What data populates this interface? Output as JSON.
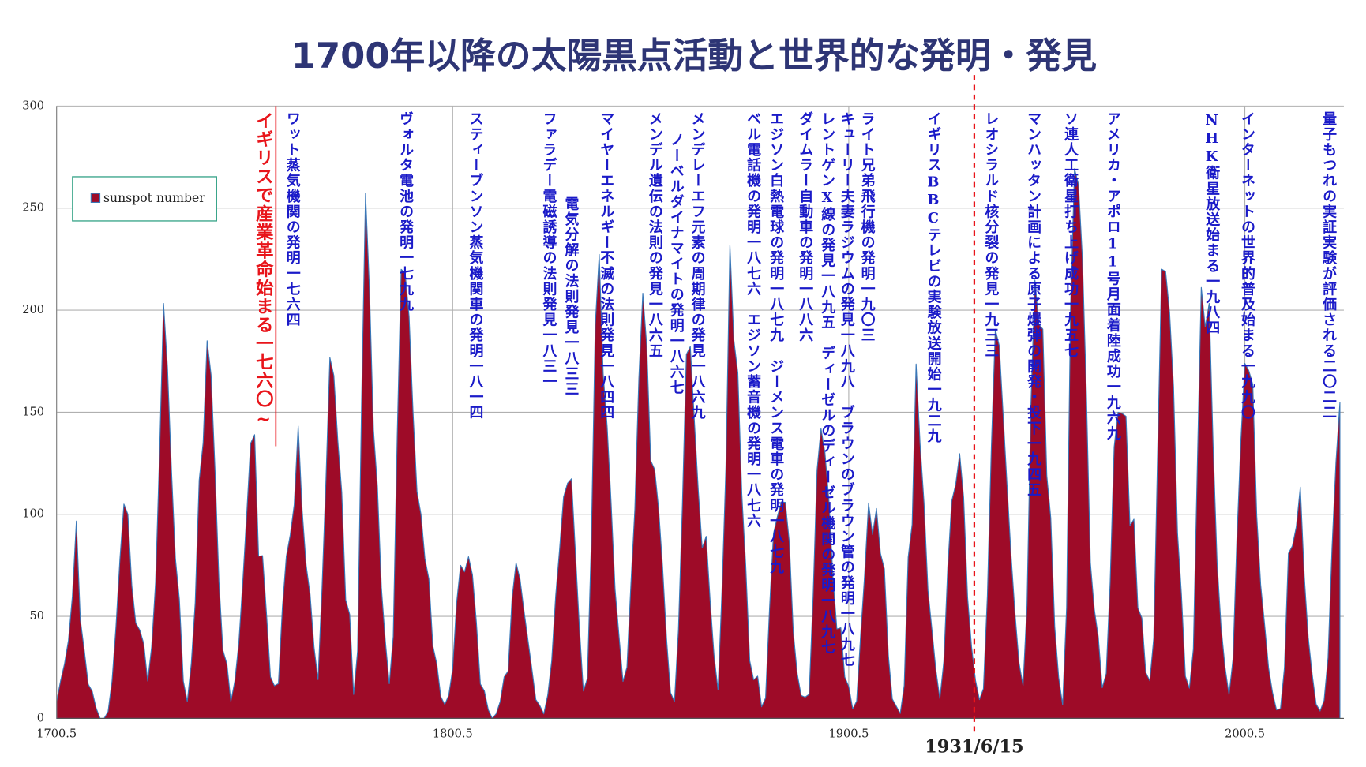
{
  "chart_data": {
    "type": "area",
    "title": "1700年以降の太陽黒点活動と世界的な発明・発見",
    "series": [
      {
        "name": "sunspot number",
        "color": "#9e0b28",
        "line_color": "#3a78b8",
        "values": [
          8.3,
          18.3,
          26.7,
          38.3,
          60.0,
          96.7,
          48.3,
          33.3,
          16.7,
          13.3,
          5.0,
          0.0,
          0.0,
          3.3,
          18.3,
          45.0,
          78.3,
          105.0,
          100.0,
          65.0,
          46.7,
          43.3,
          36.7,
          18.3,
          35.0,
          66.7,
          130.0,
          203.3,
          171.7,
          121.7,
          78.3,
          58.3,
          18.3,
          8.3,
          26.7,
          56.7,
          116.7,
          135.0,
          185.0,
          168.3,
          121.7,
          66.7,
          33.3,
          26.7,
          8.3,
          18.3,
          36.7,
          66.7,
          100.0,
          134.8,
          139.0,
          79.5,
          79.7,
          51.2,
          20.3,
          16.0,
          17.0,
          54.0,
          79.3,
          90.0,
          104.8,
          143.2,
          102.0,
          75.2,
          60.7,
          34.8,
          19.0,
          63.0,
          116.3,
          176.8,
          168.0,
          136.0,
          110.8,
          58.0,
          51.0,
          11.7,
          33.0,
          154.2,
          257.3,
          209.8,
          141.3,
          113.5,
          64.2,
          38.0,
          17.0,
          40.2,
          138.2,
          220.0,
          218.2,
          196.8,
          149.8,
          111.0,
          100.0,
          78.2,
          68.3,
          35.5,
          26.7,
          10.7,
          6.8,
          11.3,
          24.2,
          56.7,
          75.0,
          71.8,
          79.2,
          70.3,
          46.8,
          16.8,
          13.5,
          4.2,
          0.0,
          2.3,
          8.3,
          20.3,
          23.2,
          59.0,
          76.3,
          68.3,
          52.9,
          38.5,
          24.2,
          9.2,
          6.3,
          2.2,
          11.4,
          28.2,
          59.9,
          83.0,
          108.5,
          115.2,
          117.4,
          80.8,
          44.3,
          13.4,
          19.5,
          85.8,
          192.7,
          227.3,
          168.7,
          143.0,
          105.5,
          63.3,
          40.3,
          18.1,
          25.1,
          65.8,
          102.7,
          166.3,
          208.3,
          182.5,
          126.3,
          122.0,
          102.7,
          74.1,
          39.0,
          12.7,
          8.2,
          43.4,
          104.4,
          178.3,
          182.2,
          146.6,
          112.1,
          83.5,
          89.2,
          57.8,
          30.7,
          13.9,
          62.8,
          123.6,
          232.0,
          185.3,
          169.2,
          110.1,
          74.5,
          28.3,
          18.9,
          20.7,
          5.7,
          10.0,
          53.7,
          90.5,
          99.0,
          106.1,
          105.8,
          86.3,
          42.4,
          21.8,
          11.2,
          10.4,
          11.8,
          59.5,
          121.7,
          142.0,
          130.0,
          106.6,
          69.4,
          43.8,
          44.4,
          20.2,
          15.7,
          4.6,
          8.5,
          40.8,
          70.1,
          105.5,
          90.1,
          102.8,
          80.9,
          73.2,
          30.9,
          9.5,
          6.0,
          2.4,
          16.1,
          79.0,
          95.0,
          173.6,
          134.6,
          105.7,
          62.7,
          43.5,
          23.7,
          9.7,
          27.9,
          74.0,
          106.5,
          114.7,
          129.7,
          108.2,
          59.4,
          35.1,
          18.6,
          9.2,
          14.6,
          60.2,
          132.8,
          190.6,
          182.6,
          148.0,
          113.0,
          79.2,
          50.8,
          27.1,
          16.1,
          55.3,
          154.3,
          214.7,
          193.0,
          190.7,
          118.9,
          98.3,
          45.0,
          20.1,
          6.6,
          54.2,
          200.7,
          269.3,
          261.7,
          225.1,
          159.0,
          76.4,
          53.4,
          39.9,
          15.0,
          22.0,
          66.8,
          132.9,
          150.0,
          149.4,
          148.0,
          94.4,
          97.6,
          54.1,
          49.2,
          22.5,
          18.4,
          39.3,
          131.0,
          220.1,
          218.9,
          198.9,
          162.4,
          91.0,
          60.5,
          20.6,
          14.8,
          33.9,
          123.0,
          211.1,
          191.8,
          203.3,
          133.0,
          76.1,
          44.9,
          25.1,
          11.6,
          28.9,
          88.3,
          136.3,
          173.9,
          170.4,
          163.6,
          99.3,
          65.3,
          45.8,
          24.7,
          12.6,
          4.2,
          4.8,
          24.9,
          80.8,
          84.5,
          94.0,
          113.3,
          69.8,
          39.8,
          21.7,
          7.0,
          3.6,
          8.8,
          29.6,
          83.2,
          125.5,
          154.7
        ]
      }
    ],
    "x": [
      1700.5,
      1701.5,
      1702.5,
      1703.5,
      1704.5,
      1705.5,
      1706.5,
      1707.5,
      1708.5,
      1709.5,
      1710.5,
      1711.5,
      1712.5,
      1713.5,
      1714.5,
      1715.5,
      1716.5,
      1717.5,
      1718.5,
      1719.5,
      1720.5,
      1721.5,
      1722.5,
      1723.5,
      1724.5,
      1725.5,
      1726.5,
      1727.5,
      1728.5,
      1729.5,
      1730.5,
      1731.5,
      1732.5,
      1733.5,
      1734.5,
      1735.5,
      1736.5,
      1737.5,
      1738.5,
      1739.5,
      1740.5,
      1741.5,
      1742.5,
      1743.5,
      1744.5,
      1745.5,
      1746.5,
      1747.5,
      1748.5,
      1749.5,
      1750.5,
      1751.5,
      1752.5,
      1753.5,
      1754.5,
      1755.5,
      1756.5,
      1757.5,
      1758.5,
      1759.5,
      1760.5,
      1761.5,
      1762.5,
      1763.5,
      1764.5,
      1765.5,
      1766.5,
      1767.5,
      1768.5,
      1769.5,
      1770.5,
      1771.5,
      1772.5,
      1773.5,
      1774.5,
      1775.5,
      1776.5,
      1777.5,
      1778.5,
      1779.5,
      1780.5,
      1781.5,
      1782.5,
      1783.5,
      1784.5,
      1785.5,
      1786.5,
      1787.5,
      1788.5,
      1789.5,
      1790.5,
      1791.5,
      1792.5,
      1793.5,
      1794.5,
      1795.5,
      1796.5,
      1797.5,
      1798.5,
      1799.5,
      1800.5,
      1801.5,
      1802.5,
      1803.5,
      1804.5,
      1805.5,
      1806.5,
      1807.5,
      1808.5,
      1809.5,
      1810.5,
      1811.5,
      1812.5,
      1813.5,
      1814.5,
      1815.5,
      1816.5,
      1817.5,
      1818.5,
      1819.5,
      1820.5,
      1821.5,
      1822.5,
      1823.5,
      1824.5,
      1825.5,
      1826.5,
      1827.5,
      1828.5,
      1829.5,
      1830.5,
      1831.5,
      1832.5,
      1833.5,
      1834.5,
      1835.5,
      1836.5,
      1837.5,
      1838.5,
      1839.5,
      1840.5,
      1841.5,
      1842.5,
      1843.5,
      1844.5,
      1845.5,
      1846.5,
      1847.5,
      1848.5,
      1849.5,
      1850.5,
      1851.5,
      1852.5,
      1853.5,
      1854.5,
      1855.5,
      1856.5,
      1857.5,
      1858.5,
      1859.5,
      1860.5,
      1861.5,
      1862.5,
      1863.5,
      1864.5,
      1865.5,
      1866.5,
      1867.5,
      1868.5,
      1869.5,
      1870.5,
      1871.5,
      1872.5,
      1873.5,
      1874.5,
      1875.5,
      1876.5,
      1877.5,
      1878.5,
      1879.5,
      1880.5,
      1881.5,
      1882.5,
      1883.5,
      1884.5,
      1885.5,
      1886.5,
      1887.5,
      1888.5,
      1889.5,
      1890.5,
      1891.5,
      1892.5,
      1893.5,
      1894.5,
      1895.5,
      1896.5,
      1897.5,
      1898.5,
      1899.5,
      1900.5,
      1901.5,
      1902.5,
      1903.5,
      1904.5,
      1905.5,
      1906.5,
      1907.5,
      1908.5,
      1909.5,
      1910.5,
      1911.5,
      1912.5,
      1913.5,
      1914.5,
      1915.5,
      1916.5,
      1917.5,
      1918.5,
      1919.5,
      1920.5,
      1921.5,
      1922.5,
      1923.5,
      1924.5,
      1925.5,
      1926.5,
      1927.5,
      1928.5,
      1929.5,
      1930.5,
      1931.5,
      1932.5,
      1933.5,
      1934.5,
      1935.5,
      1936.5,
      1937.5,
      1938.5,
      1939.5,
      1940.5,
      1941.5,
      1942.5,
      1943.5,
      1944.5,
      1945.5,
      1946.5,
      1947.5,
      1948.5,
      1949.5,
      1950.5,
      1951.5,
      1952.5,
      1953.5,
      1954.5,
      1955.5,
      1956.5,
      1957.5,
      1958.5,
      1959.5,
      1960.5,
      1961.5,
      1962.5,
      1963.5,
      1964.5,
      1965.5,
      1966.5,
      1967.5,
      1968.5,
      1969.5,
      1970.5,
      1971.5,
      1972.5,
      1973.5,
      1974.5,
      1975.5,
      1976.5,
      1977.5,
      1978.5,
      1979.5,
      1980.5,
      1981.5,
      1982.5,
      1983.5,
      1984.5,
      1985.5,
      1986.5,
      1987.5,
      1988.5,
      1989.5,
      1990.5,
      1991.5,
      1992.5,
      1993.5,
      1994.5,
      1995.5,
      1996.5,
      1997.5,
      1998.5,
      1999.5,
      2000.5,
      2001.5,
      2002.5,
      2003.5,
      2004.5,
      2005.5,
      2006.5,
      2007.5,
      2008.5,
      2009.5,
      2010.5,
      2011.5,
      2012.5,
      2013.5,
      2014.5,
      2015.5,
      2016.5,
      2017.5,
      2018.5,
      2019.5,
      2020.5,
      2021.5,
      2022.5,
      2023.5,
      2024.5
    ],
    "xlim": [
      1700.5,
      2025.5
    ],
    "xticks": [
      1700.5,
      1800.5,
      1900.5,
      2000.5
    ],
    "ylim": [
      0,
      300
    ],
    "yticks": [
      0,
      50,
      100,
      150,
      200,
      250,
      300
    ],
    "grid": true,
    "legend": "upper left",
    "marker_label": "1931/6/15",
    "annotations": [
      "イギリスで産業革命始まる一七六〇~",
      "ワット蒸気機関の発明一七六四",
      "ヴォルタ電池の発明一七九九",
      "スティーブンソン蒸気機関車の発明一八一四",
      "ファラデー電磁誘導の法則発見一八三一",
      "電気分解の法則発見一八三三",
      "マイヤーエネルギー不滅の法則発見一八四四",
      "メンデル遺伝の法則の発見一八六五",
      "ノーベルダイナマイトの発明一八六七",
      "メンデレーエフ元素の周期律の発見一八六九",
      "ベル電話機の発明一八七六　エジソン蓄音機の発明一八七六",
      "エジソン白熱電球の発明一八七九　ジーメンス電車の発明一八七九",
      "ダイムラー自動車の発明一八八六",
      "レントゲンX線の発見一八九五　ディーゼルのディーゼル機関の発明一八九七",
      "キューリー夫妻ラジウムの発見一八九八　ブラウンのブラウン管の発明一八九七",
      "ライト兄弟飛行機の発明一九〇三",
      "イギリスBBCテレビの実験放送開始一九二九",
      "レオシラルド核分裂の発見一九三三",
      "マンハッタン計画による原子爆弾の開発・投下一九四五",
      "ソ連人工衛星打ち上げ成功一九五七",
      "アメリカ・アポロ11号月面着陸成功一九六九",
      "NHK衛星放送始まる一九八四",
      "インターネットの世界的普及始まる一九九〇",
      "量子もつれの実証実験が評価される二〇二二"
    ]
  }
}
